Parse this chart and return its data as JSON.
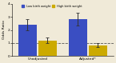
{
  "categories": [
    "Unadjusted",
    "Adjusted*"
  ],
  "low_bw_values": [
    2.4,
    2.85
  ],
  "low_bw_errors": [
    0.45,
    0.5
  ],
  "high_bw_values": [
    1.2,
    0.82
  ],
  "high_bw_errors": [
    0.22,
    0.15
  ],
  "low_bw_color": "#3a4ec2",
  "high_bw_color": "#ccaa00",
  "background_color": "#f0ead8",
  "ylabel": "Odds Ratio",
  "ylim": [
    0,
    4
  ],
  "yticks": [
    0,
    1,
    2,
    3,
    4
  ],
  "reference_line": 1.0,
  "legend_labels": [
    "Low birth weight",
    "High birth weight"
  ],
  "bar_width": 0.18,
  "group_centers": [
    0.25,
    0.75
  ]
}
